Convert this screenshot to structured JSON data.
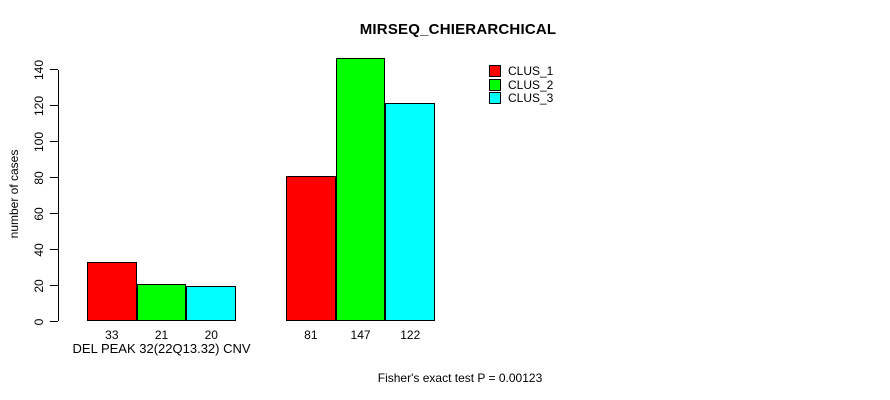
{
  "chart_data": {
    "type": "bar",
    "title": "MIRSEQ_CHIERARCHICAL",
    "ylabel": "number of cases",
    "xlabel": "",
    "annotation": "Fisher's exact test P = 0.00123",
    "ylim": [
      0,
      140
    ],
    "yticks": [
      0,
      20,
      40,
      60,
      80,
      100,
      120,
      140
    ],
    "grid": false,
    "bar_value_labels_shown": true,
    "legend_position": "top-right",
    "categories": [
      "DEL PEAK 32(22Q13.32) CNV",
      ""
    ],
    "series": [
      {
        "name": "CLUS_1",
        "color": "#ff0000",
        "values": [
          33,
          81
        ]
      },
      {
        "name": "CLUS_2",
        "color": "#00ff00",
        "values": [
          21,
          147
        ]
      },
      {
        "name": "CLUS_3",
        "color": "#00ffff",
        "values": [
          20,
          122
        ]
      }
    ],
    "colors": {
      "bar_border": "#000000",
      "axis": "#000000",
      "background": "#ffffff"
    }
  }
}
